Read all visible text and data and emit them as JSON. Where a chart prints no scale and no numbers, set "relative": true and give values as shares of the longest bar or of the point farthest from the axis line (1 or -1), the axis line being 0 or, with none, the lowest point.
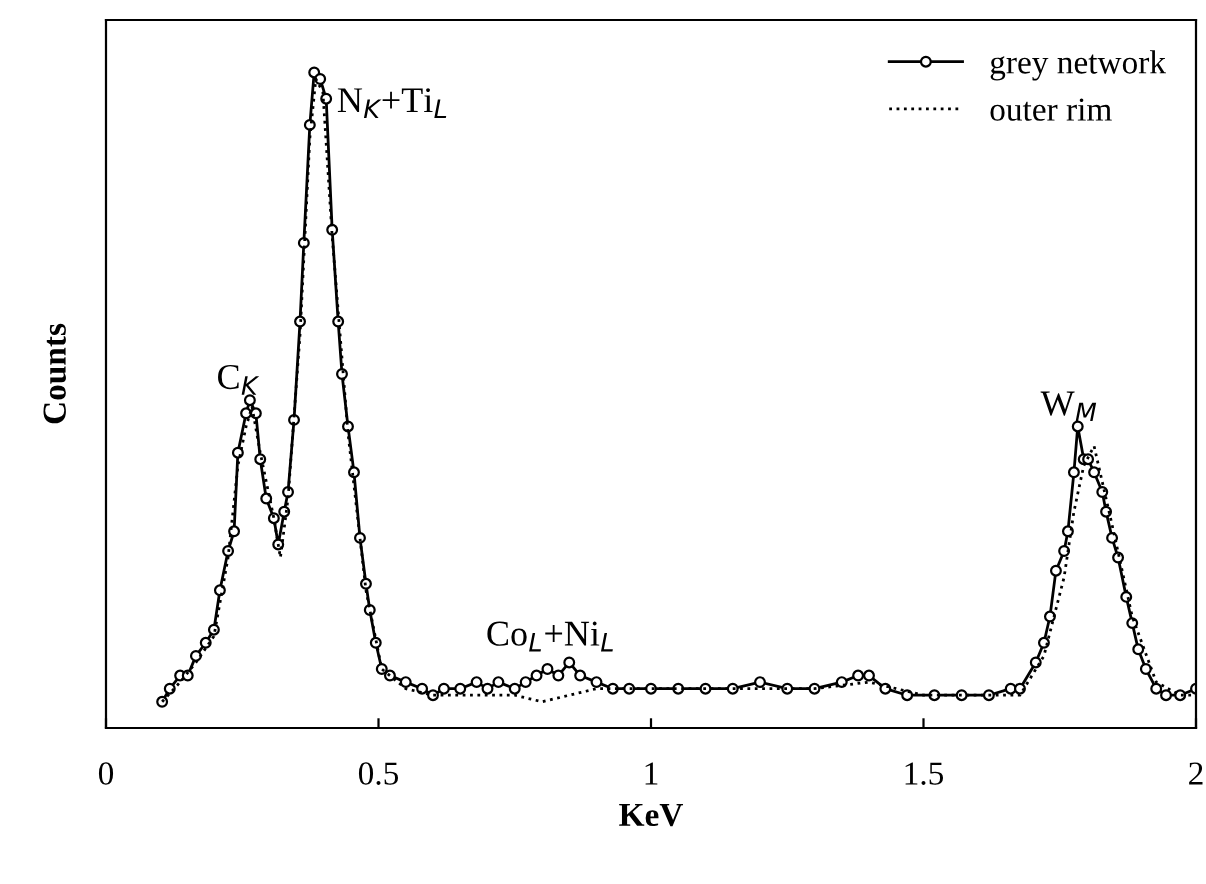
{
  "chart_data": {
    "type": "line",
    "relative": true,
    "xlabel": "KeV",
    "ylabel": "Counts",
    "xlim": [
      0,
      2
    ],
    "xticks": [
      0,
      0.5,
      1,
      1.5,
      2
    ],
    "grid": false,
    "legend": "top right",
    "annotations": [
      {
        "text": "C$_{K}$",
        "x": 0.264,
        "y": 0.5
      },
      {
        "text": "N$_{K}$+Ti$_{L}$",
        "x": 0.393,
        "y": 0.99
      },
      {
        "text": "Co$_{L}$+Ni$_{L}$",
        "x": 0.85,
        "y": 0.1
      },
      {
        "text": "W$_{M}$",
        "x": 1.776,
        "y": 0.46
      }
    ],
    "series": [
      {
        "name": "grey network",
        "color": "#000000",
        "marker": "circle",
        "line_style": "solid",
        "x": [
          0.103,
          0.117,
          0.136,
          0.15,
          0.165,
          0.183,
          0.198,
          0.209,
          0.224,
          0.235,
          0.242,
          0.257,
          0.264,
          0.275,
          0.283,
          0.294,
          0.308,
          0.316,
          0.327,
          0.334,
          0.345,
          0.356,
          0.363,
          0.374,
          0.382,
          0.393,
          0.404,
          0.415,
          0.426,
          0.433,
          0.444,
          0.455,
          0.466,
          0.477,
          0.484,
          0.495,
          0.506,
          0.521,
          0.55,
          0.58,
          0.6,
          0.62,
          0.65,
          0.68,
          0.7,
          0.72,
          0.75,
          0.77,
          0.79,
          0.81,
          0.83,
          0.85,
          0.87,
          0.9,
          0.93,
          0.96,
          1.0,
          1.05,
          1.1,
          1.15,
          1.2,
          1.25,
          1.3,
          1.35,
          1.38,
          1.4,
          1.43,
          1.47,
          1.52,
          1.57,
          1.62,
          1.66,
          1.677,
          1.706,
          1.721,
          1.732,
          1.743,
          1.758,
          1.765,
          1.776,
          1.783,
          1.794,
          1.802,
          1.813,
          1.828,
          1.835,
          1.846,
          1.857,
          1.872,
          1.883,
          1.894,
          1.908,
          1.927,
          1.945,
          1.971,
          2.0
        ],
        "values": [
          0.04,
          0.06,
          0.08,
          0.08,
          0.11,
          0.13,
          0.15,
          0.21,
          0.27,
          0.3,
          0.42,
          0.48,
          0.5,
          0.48,
          0.41,
          0.35,
          0.32,
          0.28,
          0.33,
          0.36,
          0.47,
          0.62,
          0.74,
          0.92,
          1.0,
          0.99,
          0.96,
          0.76,
          0.62,
          0.54,
          0.46,
          0.39,
          0.29,
          0.22,
          0.18,
          0.13,
          0.09,
          0.08,
          0.07,
          0.06,
          0.05,
          0.06,
          0.06,
          0.07,
          0.06,
          0.07,
          0.06,
          0.07,
          0.08,
          0.09,
          0.08,
          0.1,
          0.08,
          0.07,
          0.06,
          0.06,
          0.06,
          0.06,
          0.06,
          0.06,
          0.07,
          0.06,
          0.06,
          0.07,
          0.08,
          0.08,
          0.06,
          0.05,
          0.05,
          0.05,
          0.05,
          0.06,
          0.06,
          0.1,
          0.13,
          0.17,
          0.24,
          0.27,
          0.3,
          0.39,
          0.46,
          0.41,
          0.41,
          0.39,
          0.36,
          0.33,
          0.29,
          0.26,
          0.2,
          0.16,
          0.12,
          0.09,
          0.06,
          0.05,
          0.05,
          0.06
        ]
      },
      {
        "name": "outer rim",
        "color": "#000000",
        "marker": "none",
        "line_style": "dotted",
        "x": [
          0.103,
          0.136,
          0.165,
          0.198,
          0.224,
          0.242,
          0.257,
          0.268,
          0.283,
          0.308,
          0.32,
          0.334,
          0.356,
          0.374,
          0.385,
          0.398,
          0.415,
          0.444,
          0.477,
          0.506,
          0.55,
          0.6,
          0.65,
          0.7,
          0.75,
          0.8,
          0.85,
          0.9,
          1.0,
          1.1,
          1.2,
          1.3,
          1.4,
          1.5,
          1.6,
          1.677,
          1.721,
          1.758,
          1.776,
          1.794,
          1.813,
          1.846,
          1.883,
          1.927,
          1.971,
          2.0
        ],
        "values": [
          0.04,
          0.07,
          0.1,
          0.14,
          0.26,
          0.4,
          0.46,
          0.49,
          0.42,
          0.32,
          0.26,
          0.35,
          0.6,
          0.9,
          0.99,
          0.97,
          0.75,
          0.45,
          0.21,
          0.09,
          0.06,
          0.05,
          0.05,
          0.05,
          0.05,
          0.04,
          0.05,
          0.06,
          0.06,
          0.06,
          0.06,
          0.06,
          0.07,
          0.05,
          0.05,
          0.05,
          0.11,
          0.23,
          0.33,
          0.4,
          0.43,
          0.31,
          0.17,
          0.07,
          0.05,
          0.05
        ]
      }
    ]
  }
}
